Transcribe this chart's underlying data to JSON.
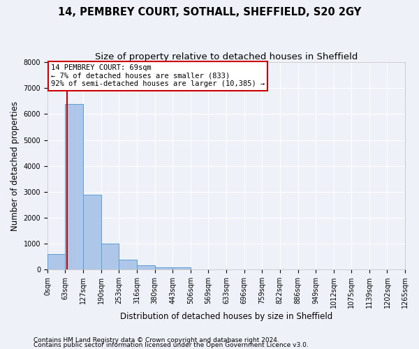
{
  "title1": "14, PEMBREY COURT, SOTHALL, SHEFFIELD, S20 2GY",
  "title2": "Size of property relative to detached houses in Sheffield",
  "xlabel": "Distribution of detached houses by size in Sheffield",
  "ylabel": "Number of detached properties",
  "footnote1": "Contains HM Land Registry data © Crown copyright and database right 2024.",
  "footnote2": "Contains public sector information licensed under the Open Government Licence v3.0.",
  "bin_labels": [
    "0sqm",
    "63sqm",
    "127sqm",
    "190sqm",
    "253sqm",
    "316sqm",
    "380sqm",
    "443sqm",
    "506sqm",
    "569sqm",
    "633sqm",
    "696sqm",
    "759sqm",
    "822sqm",
    "886sqm",
    "949sqm",
    "1012sqm",
    "1075sqm",
    "1139sqm",
    "1202sqm",
    "1265sqm"
  ],
  "bin_edges": [
    0,
    63,
    127,
    190,
    253,
    316,
    380,
    443,
    506,
    569,
    633,
    696,
    759,
    822,
    886,
    949,
    1012,
    1075,
    1139,
    1202,
    1265
  ],
  "bar_heights": [
    600,
    6400,
    2900,
    1000,
    380,
    170,
    100,
    80,
    0,
    0,
    0,
    0,
    0,
    0,
    0,
    0,
    0,
    0,
    0,
    0
  ],
  "bar_color": "#aec6e8",
  "bar_edge_color": "#5a9fd4",
  "property_size": 69,
  "vline_color": "#cc0000",
  "annotation_line1": "14 PEMBREY COURT: 69sqm",
  "annotation_line2": "← 7% of detached houses are smaller (833)",
  "annotation_line3": "92% of semi-detached houses are larger (10,385) →",
  "annotation_box_color": "#ffffff",
  "annotation_box_edge_color": "#cc0000",
  "ylim": [
    0,
    8000
  ],
  "yticks": [
    0,
    1000,
    2000,
    3000,
    4000,
    5000,
    6000,
    7000,
    8000
  ],
  "xlim": [
    0,
    1265
  ],
  "background_color": "#eef2f8",
  "grid_color": "#ffffff",
  "title1_fontsize": 10.5,
  "title2_fontsize": 9.5,
  "axis_label_fontsize": 8.5,
  "tick_fontsize": 7,
  "annotation_fontsize": 7.5,
  "footnote_fontsize": 6.5
}
